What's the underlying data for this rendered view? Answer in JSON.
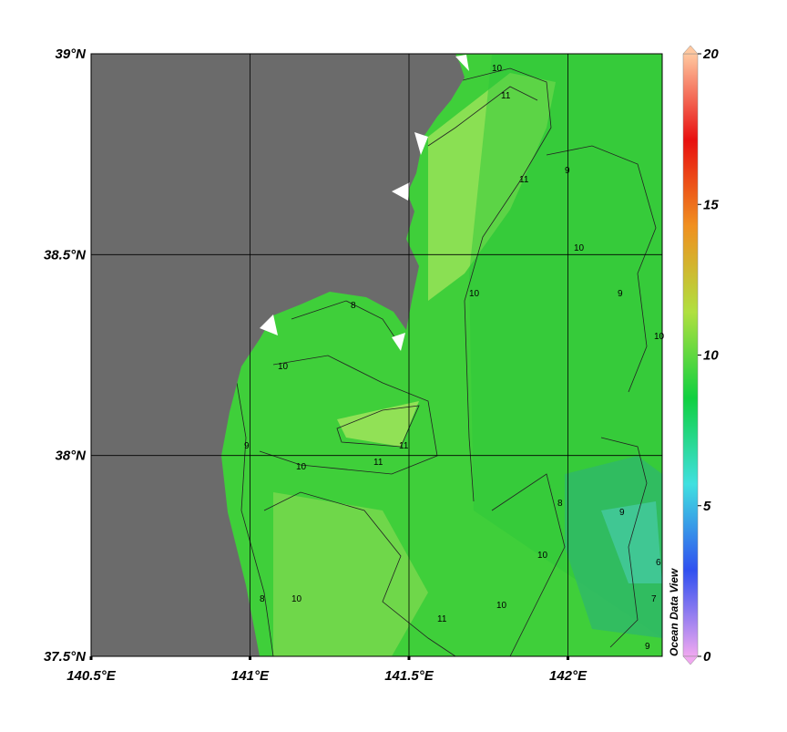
{
  "map": {
    "xlim": [
      140.5,
      142.3
    ],
    "ylim": [
      37.5,
      39
    ],
    "xticks": [
      {
        "value": 140.5,
        "label": "140.5°E"
      },
      {
        "value": 141,
        "label": "141°E"
      },
      {
        "value": 141.5,
        "label": "141.5°E"
      },
      {
        "value": 142,
        "label": "142°E"
      }
    ],
    "yticks": [
      {
        "value": 37.5,
        "label": "37.5°N"
      },
      {
        "value": 38,
        "label": "38°N"
      },
      {
        "value": 38.5,
        "label": "38.5°N"
      },
      {
        "value": 39,
        "label": "39°N"
      }
    ],
    "grid": true,
    "land_color": "#6b6b6b",
    "ocean_color": "#3fcf3a",
    "contour_labels": [
      10,
      11,
      11,
      10,
      9,
      10,
      8,
      10,
      11,
      10,
      11,
      9,
      10,
      8,
      9,
      10,
      11,
      9,
      10,
      8,
      6,
      7,
      10,
      9
    ],
    "colorbar": {
      "lim": [
        0,
        20
      ],
      "ticks": [
        0,
        5,
        10,
        15,
        20
      ],
      "colors": [
        "#f0a8f0",
        "#3050f0",
        "#40e0e0",
        "#10d040",
        "#b0e040",
        "#f09020",
        "#e81010",
        "#ffc8a0"
      ]
    },
    "watermark": "Ocean Data View"
  }
}
